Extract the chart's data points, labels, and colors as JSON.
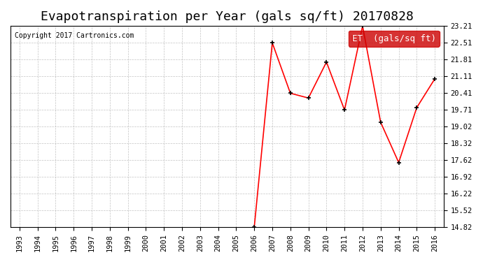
{
  "title": "Evapotranspiration per Year (gals sq/ft) 20170828",
  "copyright_text": "Copyright 2017 Cartronics.com",
  "legend_label": "ET  (gals/sq ft)",
  "years": [
    1993,
    1994,
    1995,
    1996,
    1997,
    1998,
    1999,
    2000,
    2001,
    2002,
    2003,
    2004,
    2005,
    2006,
    2007,
    2008,
    2009,
    2010,
    2011,
    2012,
    2013,
    2014,
    2015,
    2016
  ],
  "values": [
    null,
    null,
    null,
    null,
    null,
    null,
    null,
    null,
    null,
    null,
    null,
    null,
    null,
    14.82,
    22.51,
    20.41,
    20.21,
    21.71,
    19.71,
    23.21,
    19.2,
    17.52,
    19.81,
    21.01
  ],
  "yticks": [
    14.82,
    15.52,
    16.22,
    16.92,
    17.62,
    18.32,
    19.02,
    19.71,
    20.41,
    21.11,
    21.81,
    22.51,
    23.21
  ],
  "ylim": [
    14.82,
    23.21
  ],
  "line_color": "red",
  "marker_color": "black",
  "bg_color": "#ffffff",
  "grid_color": "#aaaaaa",
  "legend_bg": "#cc0000",
  "legend_text_color": "#ffffff",
  "title_fontsize": 13,
  "copyright_fontsize": 7,
  "tick_fontsize": 7.5,
  "legend_fontsize": 9
}
